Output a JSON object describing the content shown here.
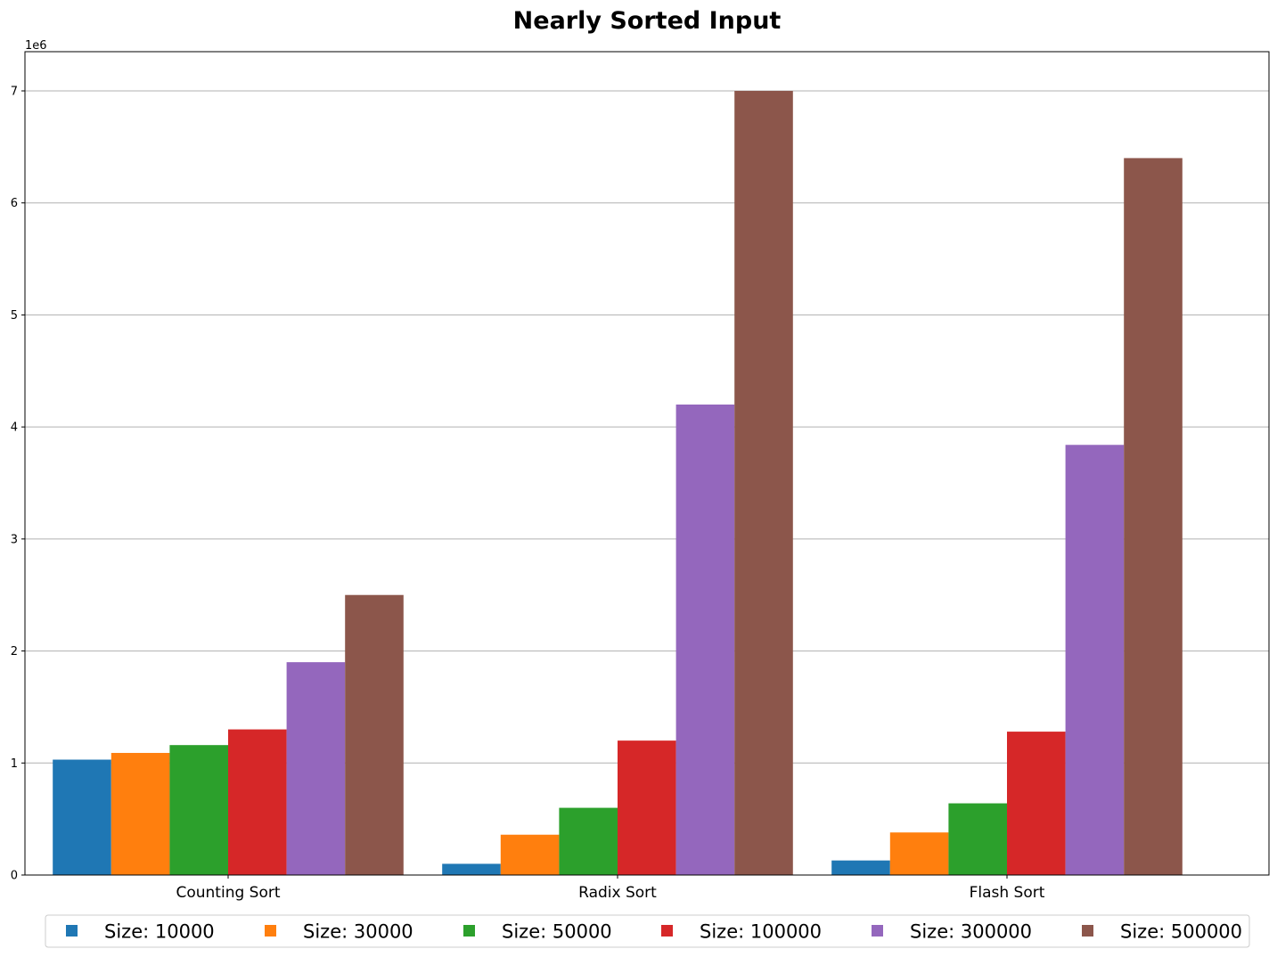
{
  "chart_data": {
    "type": "bar",
    "title": "Nearly Sorted Input",
    "xlabel": "",
    "ylabel": "",
    "y_offset_label": "1e6",
    "ylim": [
      0,
      7350000
    ],
    "yticks": [
      0,
      1000000,
      2000000,
      3000000,
      4000000,
      5000000,
      6000000,
      7000000
    ],
    "ytick_labels": [
      "0",
      "1",
      "2",
      "3",
      "4",
      "5",
      "6",
      "7"
    ],
    "grid": "y",
    "legend_position": "bottom-center",
    "categories": [
      "Counting Sort",
      "Radix Sort",
      "Flash Sort"
    ],
    "series": [
      {
        "name": "Size: 10000",
        "color": "#1f77b4",
        "values": [
          1030000,
          100000,
          130000
        ]
      },
      {
        "name": "Size: 30000",
        "color": "#ff7f0e",
        "values": [
          1090000,
          360000,
          380000
        ]
      },
      {
        "name": "Size: 50000",
        "color": "#2ca02c",
        "values": [
          1160000,
          600000,
          640000
        ]
      },
      {
        "name": "Size: 100000",
        "color": "#d62728",
        "values": [
          1300000,
          1200000,
          1280000
        ]
      },
      {
        "name": "Size: 300000",
        "color": "#9467bd",
        "values": [
          1900000,
          4200000,
          3840000
        ]
      },
      {
        "name": "Size: 500000",
        "color": "#8c564b",
        "values": [
          2500000,
          7000000,
          6400000
        ]
      }
    ]
  }
}
